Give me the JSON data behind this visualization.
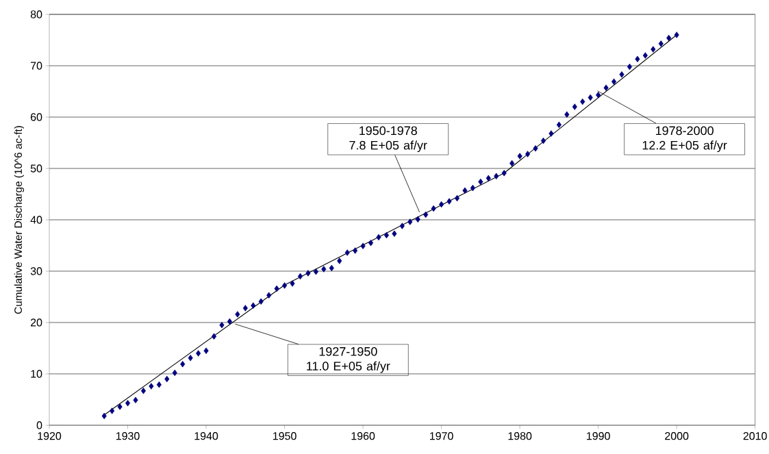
{
  "chart_data": {
    "type": "scatter",
    "ylabel": "Cumulative Water Discharge (10^6 ac-ft)",
    "xlim": [
      1920,
      2010
    ],
    "xticks": [
      1920,
      1930,
      1940,
      1950,
      1960,
      1970,
      1980,
      1990,
      2000,
      2010
    ],
    "ylim": [
      0,
      80
    ],
    "yticks": [
      0,
      10,
      20,
      30,
      40,
      50,
      60,
      70,
      80
    ],
    "grid": "y",
    "marker": "diamond",
    "series": [
      {
        "color": "#000080",
        "x": [
          1927,
          1928,
          1929,
          1930,
          1931,
          1932,
          1933,
          1934,
          1935,
          1936,
          1937,
          1938,
          1939,
          1940,
          1941,
          1942,
          1943,
          1944,
          1945,
          1946,
          1947,
          1948,
          1949,
          1950,
          1951,
          1952,
          1953,
          1954,
          1955,
          1956,
          1957,
          1958,
          1959,
          1960,
          1961,
          1962,
          1963,
          1964,
          1965,
          1966,
          1967,
          1968,
          1969,
          1970,
          1971,
          1972,
          1973,
          1974,
          1975,
          1976,
          1977,
          1978,
          1979,
          1980,
          1981,
          1982,
          1983,
          1984,
          1985,
          1986,
          1987,
          1988,
          1989,
          1990,
          1991,
          1992,
          1993,
          1994,
          1995,
          1996,
          1997,
          1998,
          1999,
          2000
        ],
        "values": [
          1.8,
          2.8,
          3.6,
          4.3,
          4.9,
          6.7,
          7.6,
          7.9,
          9.0,
          10.2,
          11.9,
          13.1,
          14.0,
          14.5,
          17.3,
          19.5,
          20.2,
          21.6,
          22.8,
          23.3,
          24.1,
          25.3,
          26.6,
          27.2,
          27.6,
          29.0,
          29.6,
          29.9,
          30.4,
          30.6,
          32.0,
          33.6,
          34.0,
          34.9,
          35.5,
          36.6,
          37.0,
          37.3,
          38.8,
          39.6,
          40.1,
          41.0,
          42.2,
          43.0,
          43.6,
          44.2,
          45.7,
          46.2,
          47.4,
          48.1,
          48.5,
          49.1,
          51.0,
          52.4,
          52.8,
          53.9,
          55.4,
          56.8,
          58.5,
          60.5,
          62.0,
          63.0,
          63.8,
          64.3,
          65.7,
          66.9,
          68.3,
          69.8,
          71.3,
          72.0,
          73.2,
          74.3,
          75.4,
          76.0
        ]
      },
      {
        "type": "line",
        "marker": "none",
        "color": "#000000",
        "x": [
          1927,
          1950,
          1978,
          2000
        ],
        "values": [
          2.0,
          27.3,
          49.1,
          76.0
        ]
      }
    ],
    "annotations": [
      {
        "text": "1927-1950 11.0 E+05 af/yr",
        "x": 1943.7,
        "y": 19.7
      },
      {
        "text": "1950-1978 7.8 E+05 af/yr",
        "x": 1967.2,
        "y": 41.5
      },
      {
        "text": "1978-2000 12.2 E+05 af/yr",
        "x": 1989.9,
        "y": 65.1
      }
    ]
  }
}
